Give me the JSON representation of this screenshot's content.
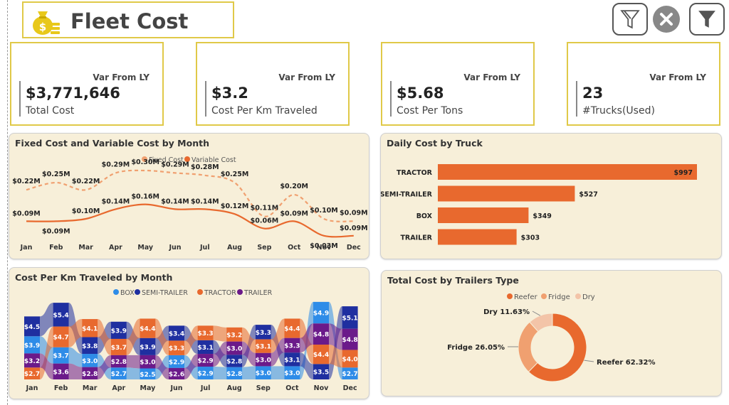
{
  "header": {
    "title": "Fleet Cost",
    "icon": "money-bag-icon"
  },
  "toolbar": {
    "icons": [
      "filter-clear-icon",
      "close-icon",
      "filter-icon"
    ]
  },
  "kpis": [
    {
      "value": "$3,771,646",
      "label": "Total Cost",
      "var_label": "Var From LY"
    },
    {
      "value": "$3.2",
      "label": "Cost Per Km Traveled",
      "var_label": "Var From LY"
    },
    {
      "value": "$5.68",
      "label": "Cost Per Tons",
      "var_label": "Var From LY"
    },
    {
      "value": "23",
      "label": "#Trucks(Used)",
      "var_label": "Var From LY"
    }
  ],
  "colors": {
    "accent": "#e0c948",
    "panel_bg": "#f7efd9",
    "orange": "#e8692e",
    "light_orange": "#f0a070",
    "peach": "#f3c4a8",
    "box": "#2e8ce8",
    "semi_trailer": "#1f2fa0",
    "tractor": "#e8692e",
    "trailer": "#6b1a8a"
  },
  "chart_data": [
    {
      "type": "line",
      "title": "Fixed Cost and Variable Cost by Month",
      "categories": [
        "Jan",
        "Feb",
        "Mar",
        "Apr",
        "May",
        "Jun",
        "Jul",
        "Aug",
        "Sep",
        "Oct",
        "Nov",
        "Dec"
      ],
      "series": [
        {
          "name": "Fixed Cost",
          "style": "dashed",
          "values": [
            0.22,
            0.25,
            0.22,
            0.29,
            0.3,
            0.29,
            0.28,
            0.25,
            0.11,
            0.2,
            0.1,
            0.09
          ],
          "labels": [
            "$0.22M",
            "$0.25M",
            "$0.22M",
            "$0.29M",
            "$0.30M",
            "$0.29M",
            "$0.28M",
            "$0.25M",
            "$0.11M",
            "$0.20M",
            "$0.10M",
            "$0.09M"
          ]
        },
        {
          "name": "Variable Cost",
          "style": "solid",
          "values": [
            0.09,
            0.09,
            0.1,
            0.14,
            0.16,
            0.14,
            0.14,
            0.12,
            0.06,
            0.09,
            0.03,
            0.03
          ],
          "labels": [
            "$0.09M",
            "$0.09M",
            "$0.10M",
            "$0.14M",
            "$0.16M",
            "$0.14M",
            "$0.14M",
            "$0.12M",
            "$0.06M",
            "$0.09M",
            "$0.03M",
            ""
          ]
        }
      ],
      "legend_position": "top-right"
    },
    {
      "type": "bar",
      "title": "Daily Cost by Truck",
      "orientation": "horizontal",
      "categories": [
        "TRACTOR",
        "SEMI-TRAILER",
        "BOX",
        "TRAILER"
      ],
      "values": [
        997,
        527,
        349,
        303
      ],
      "labels": [
        "$997",
        "$527",
        "$349",
        "$303"
      ]
    },
    {
      "type": "area",
      "title": "Cost Per Km Traveled by Month",
      "subtype": "ribbon",
      "categories": [
        "Jan",
        "Feb",
        "Mar",
        "Apr",
        "May",
        "Jun",
        "Jul",
        "Aug",
        "Sep",
        "Oct",
        "Nov",
        "Dec"
      ],
      "series": [
        {
          "name": "BOX",
          "values": [
            3.9,
            3.7,
            3.0,
            2.7,
            2.5,
            2.9,
            2.9,
            2.8,
            3.0,
            3.0,
            4.9,
            2.7
          ],
          "labels": [
            "$3.9",
            "$3.7",
            "$3.0",
            "$2.7",
            "$2.5",
            "$2.9",
            "$2.9",
            "$2.8",
            "$3.0",
            "$3.0",
            "$4.9",
            "$2.7"
          ]
        },
        {
          "name": "SEMI-TRAILER",
          "values": [
            4.5,
            5.4,
            3.8,
            3.9,
            3.9,
            3.4,
            3.1,
            2.8,
            3.3,
            3.1,
            3.5,
            5.1
          ],
          "labels": [
            "$4.5",
            "$5.4",
            "$3.8",
            "$3.9",
            "$3.9",
            "$3.4",
            "$3.1",
            "$2.8",
            "$3.3",
            "$3.1",
            "$3.5",
            "$5.1"
          ]
        },
        {
          "name": "TRACTOR",
          "values": [
            2.7,
            4.7,
            4.1,
            3.7,
            4.4,
            3.3,
            3.3,
            3.2,
            3.1,
            4.4,
            4.4,
            4.0
          ],
          "labels": [
            "$2.7",
            "$4.7",
            "$4.1",
            "$3.7",
            "$4.4",
            "$3.3",
            "$3.3",
            "$3.2",
            "$3.1",
            "$4.4",
            "$4.4",
            "$4.0"
          ]
        },
        {
          "name": "TRAILER",
          "values": [
            3.2,
            3.6,
            2.8,
            2.8,
            3.0,
            2.6,
            2.9,
            3.0,
            3.0,
            3.3,
            4.8,
            4.8
          ],
          "labels": [
            "$3.2",
            "$3.6",
            "$2.8",
            "$2.8",
            "$3.0",
            "$2.6",
            "$2.9",
            "$3.0",
            "$3.0",
            "$3.3",
            "$4.8",
            "$4.8"
          ]
        }
      ],
      "legend_position": "top"
    },
    {
      "type": "pie",
      "subtype": "donut",
      "title": "Total Cost by Trailers Type",
      "categories": [
        "Reefer",
        "Fridge",
        "Dry"
      ],
      "values": [
        62.32,
        26.05,
        11.63
      ],
      "labels": [
        "Reefer 62.32%",
        "Fridge 26.05%",
        "Dry 11.63%"
      ],
      "legend_position": "top"
    }
  ]
}
